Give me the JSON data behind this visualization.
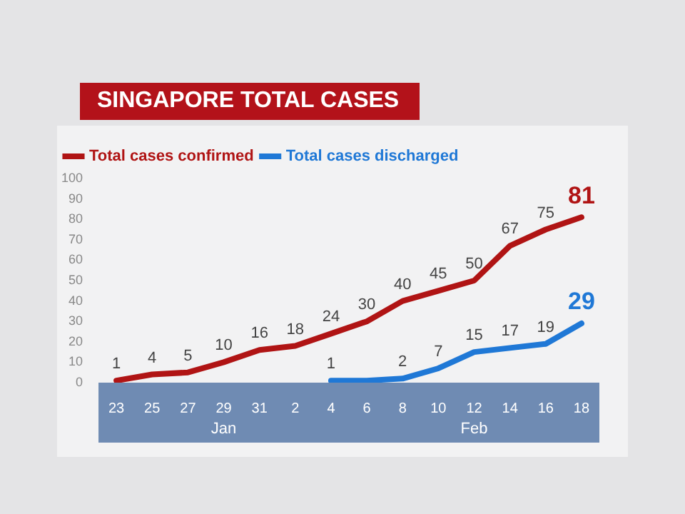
{
  "chart_data": {
    "type": "line",
    "title": "SINGAPORE TOTAL CASES",
    "categories": [
      "23",
      "25",
      "27",
      "29",
      "31",
      "2",
      "4",
      "6",
      "8",
      "10",
      "12",
      "14",
      "16",
      "18"
    ],
    "series": [
      {
        "name": "Total cases confirmed",
        "color": "#b01414",
        "values": [
          1,
          4,
          5,
          10,
          16,
          18,
          24,
          30,
          40,
          45,
          50,
          67,
          75,
          81
        ],
        "value_labels": [
          "1",
          "4",
          "5",
          "10",
          "16",
          "18",
          "24",
          "30",
          "40",
          "45",
          "50",
          "67",
          "75",
          "81"
        ]
      },
      {
        "name": "Total cases discharged",
        "color": "#1f78d6",
        "values": [
          null,
          null,
          null,
          null,
          null,
          null,
          1,
          1,
          2,
          7,
          15,
          17,
          19,
          29
        ],
        "value_labels": [
          null,
          null,
          null,
          null,
          null,
          null,
          "1",
          null,
          "2",
          "7",
          "15",
          "17",
          "19",
          "29"
        ]
      }
    ],
    "annotations": [
      "Jan",
      "Feb"
    ],
    "ylim": [
      0,
      100
    ],
    "yticks": [
      0,
      10,
      20,
      30,
      40,
      50,
      60,
      70,
      80,
      90,
      100
    ],
    "grid": false,
    "legend": "top left",
    "marker": "none",
    "line_style": "solid"
  }
}
